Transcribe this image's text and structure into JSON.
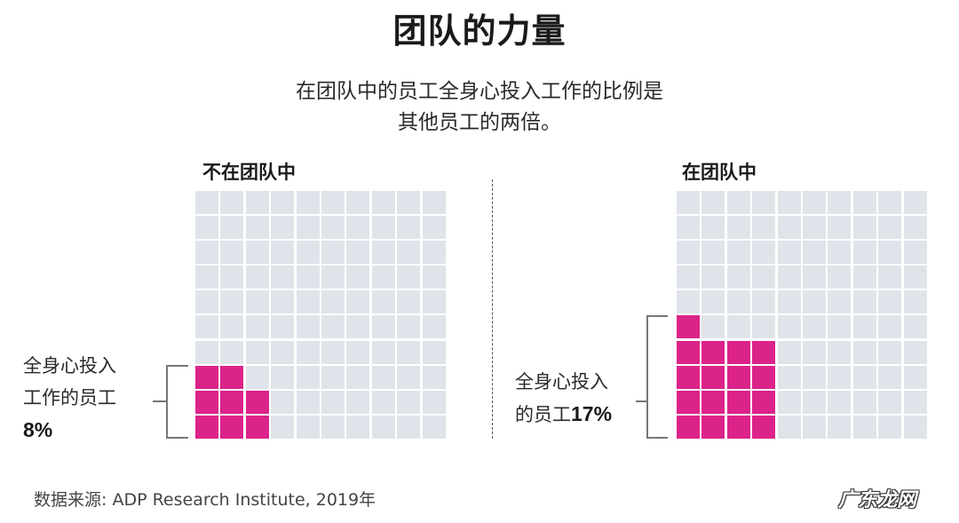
{
  "header": {
    "title": "团队的力量",
    "subtitle_line1": "在团队中的员工全身心投入工作的比例是",
    "subtitle_line2": "其他员工的两倍。"
  },
  "colors": {
    "filled": "#dc2389",
    "empty": "#dfe4ea",
    "bracket": "#777777"
  },
  "panels": [
    {
      "title": "不在团队中",
      "label_line1": "全身心投入",
      "label_line2": "工作的员工",
      "value_label": "8%",
      "value": 8
    },
    {
      "title": "在团队中",
      "label_line1": "全身心投入",
      "label_line2_prefix": "的员工",
      "value_label": "17%",
      "value": 17
    }
  ],
  "footer": {
    "source": "数据来源: ADP Research Institute, 2019年",
    "watermark": "广东龙网"
  },
  "chart_data": {
    "type": "waffle",
    "title": "团队的力量",
    "subtitle": "在团队中的员工全身心投入工作的比例是其他员工的两倍。",
    "grid": [
      10,
      10
    ],
    "fill_order": "bottom-up, left-to-right within column groups",
    "categories": [
      "不在团队中",
      "在团队中"
    ],
    "series": [
      {
        "name": "全身心投入工作的员工 (%)",
        "values": [
          8,
          17
        ]
      }
    ],
    "total_per_grid": 100,
    "source": "ADP Research Institute, 2019年"
  }
}
